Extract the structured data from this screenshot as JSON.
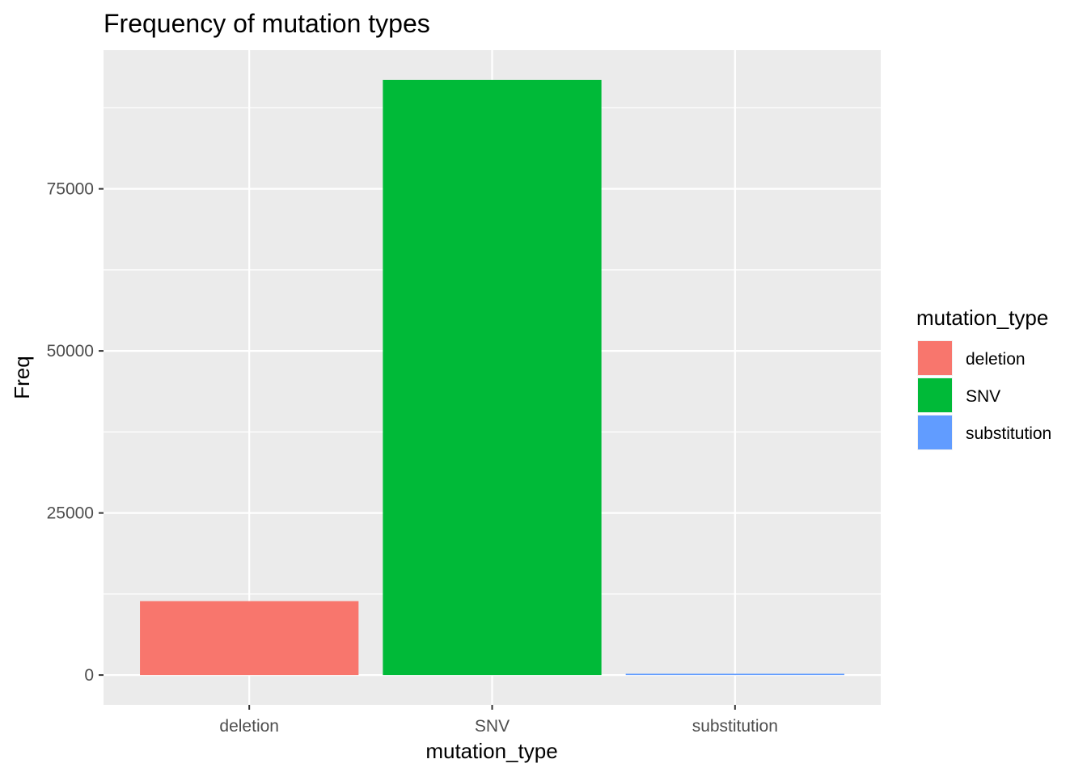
{
  "chart_data": {
    "type": "bar",
    "title": "Frequency of mutation types",
    "xlabel": "mutation_type",
    "ylabel": "Freq",
    "categories": [
      "deletion",
      "SNV",
      "substitution"
    ],
    "values": [
      11400,
      91800,
      200
    ],
    "colors": [
      "#F8766D",
      "#00BA38",
      "#619CFF"
    ],
    "ylim": [
      -4600,
      96400
    ],
    "yticks": [
      0,
      25000,
      50000,
      75000
    ],
    "ytick_labels": [
      "0",
      "25000",
      "50000",
      "75000"
    ],
    "grid": true,
    "legend": {
      "title": "mutation_type",
      "position": "right",
      "entries": [
        "deletion",
        "SNV",
        "substitution"
      ]
    },
    "panel_background": "#EBEBEB",
    "grid_color": "#FFFFFF"
  }
}
